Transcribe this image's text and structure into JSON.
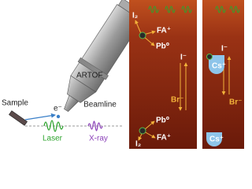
{
  "labels": {
    "analyzer": "ARTOF",
    "sample": "Sample",
    "electron": "e⁻",
    "beamline": "Beamline",
    "laser": "Laser",
    "xray": "X-ray"
  },
  "panel_left": {
    "top": {
      "iodine": "I₂",
      "cation": "FA⁺",
      "lead": "Pb⁰",
      "iodide": "I⁻",
      "bromide": "Br⁻"
    },
    "bottom": {
      "lead": "Pb⁰",
      "cation": "FA⁺",
      "iodine": "I₂"
    }
  },
  "panel_right": {
    "iodide": "I⁻",
    "cesium_top": "Cs⁺",
    "bromide": "Br⁻",
    "cesium_bottom": "Cs⁺"
  }
}
